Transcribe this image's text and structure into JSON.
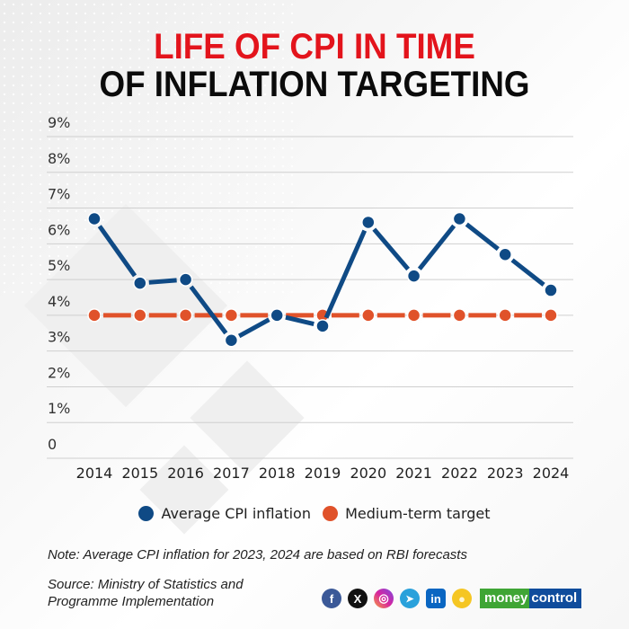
{
  "title": {
    "line1": "LIFE OF CPI IN TIME",
    "line2": "OF INFLATION TARGETING"
  },
  "colors": {
    "title_accent": "#e3141c",
    "cpi_series": "#0f4a85",
    "target_series": "#e0522a",
    "gridline": "#cccccc"
  },
  "chart_data": {
    "type": "line",
    "title": "LIFE OF CPI IN TIME OF INFLATION TARGETING",
    "xlabel": "",
    "ylabel": "",
    "x": [
      "2014",
      "2015",
      "2016",
      "2017",
      "2018",
      "2019",
      "2020",
      "2021",
      "2022",
      "2023",
      "2024"
    ],
    "y_ticks": [
      "0",
      "1%",
      "2%",
      "3%",
      "4%",
      "5%",
      "6%",
      "7%",
      "8%",
      "9%"
    ],
    "ylim": [
      0,
      9
    ],
    "grid": true,
    "legend_position": "bottom",
    "series": [
      {
        "name": "Average CPI inflation",
        "color": "#0f4a85",
        "values": [
          6.7,
          4.9,
          5.0,
          3.3,
          4.0,
          3.7,
          6.6,
          5.1,
          6.7,
          5.7,
          4.7
        ]
      },
      {
        "name": "Medium-term target",
        "color": "#e0522a",
        "values": [
          4,
          4,
          4,
          4,
          4,
          4,
          4,
          4,
          4,
          4,
          4
        ]
      }
    ]
  },
  "legend": [
    {
      "label": "Average CPI inflation",
      "color": "#0f4a85"
    },
    {
      "label": "Medium-term target",
      "color": "#e0522a"
    }
  ],
  "footer": {
    "note": "Note: Average CPI inflation for 2023, 2024 are based on RBI forecasts",
    "source_line1": "Source: Ministry of Statistics and",
    "source_line2": "Programme Implementation",
    "social": [
      {
        "name": "facebook",
        "glyph": "f",
        "color": "#3b5998"
      },
      {
        "name": "x",
        "glyph": "X",
        "color": "#111111"
      },
      {
        "name": "instagram",
        "glyph": "◎",
        "color": "#d6249f"
      },
      {
        "name": "telegram",
        "glyph": "➤",
        "color": "#2aa1db"
      },
      {
        "name": "linkedin",
        "glyph": "in",
        "color": "#0a66c2"
      },
      {
        "name": "koo",
        "glyph": "●",
        "color": "#f5c623"
      }
    ],
    "brand_green": "money",
    "brand_blue": "control"
  }
}
